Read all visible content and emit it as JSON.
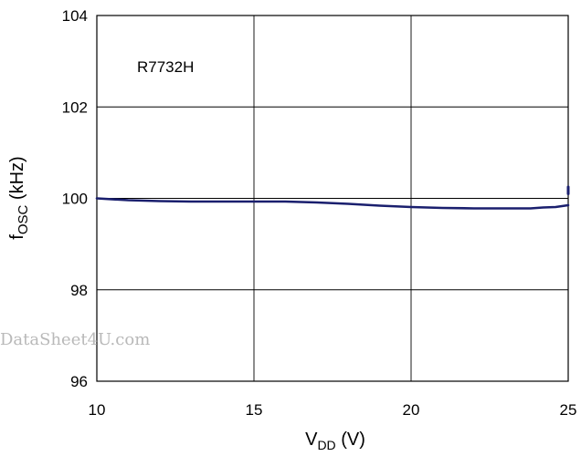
{
  "chart_data": {
    "type": "line",
    "xlabel": {
      "main": "V",
      "sub": "DD",
      "unit": " (V)"
    },
    "ylabel": {
      "main": "f",
      "sub": "OSC",
      "unit": " (kHz)"
    },
    "xlim": [
      10,
      25
    ],
    "ylim": [
      96,
      104
    ],
    "x_ticks": [
      10,
      15,
      20,
      25
    ],
    "y_ticks": [
      96,
      98,
      100,
      102,
      104
    ],
    "x_tick_labels": [
      "10",
      "15",
      "20",
      "25"
    ],
    "y_tick_labels": [
      "96",
      "98",
      "100",
      "102",
      "104"
    ],
    "grid": true,
    "annotation": "R7732H",
    "series": [
      {
        "color": "#1a1f6e",
        "x": [
          10,
          11,
          12,
          13,
          14,
          15,
          16,
          17,
          18,
          19,
          20,
          21,
          22,
          23,
          23.8,
          24.2,
          24.6,
          25
        ],
        "y": [
          100.0,
          99.96,
          99.94,
          99.93,
          99.93,
          99.93,
          99.93,
          99.91,
          99.88,
          99.84,
          99.81,
          99.79,
          99.78,
          99.78,
          99.78,
          99.8,
          99.81,
          99.85
        ]
      }
    ],
    "end_mark": {
      "x": 25,
      "y1": 100.25,
      "y2": 100.1
    }
  },
  "watermark": "DataSheet4U.com"
}
